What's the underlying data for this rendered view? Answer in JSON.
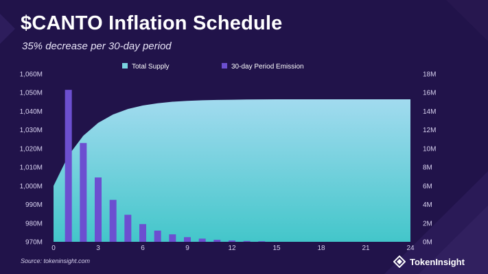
{
  "title": "$CANTO Inflation Schedule",
  "subtitle": "35% decrease per 30-day period",
  "source": "Source: tokeninsight.com",
  "brand": {
    "name": "TokenInsight",
    "logo_icon": "tokeninsight-logo-icon"
  },
  "colors": {
    "background": "#21134a",
    "area_top": "#a2dbef",
    "area_bottom": "#43c6ca",
    "bar": "#6c4fd0",
    "text": "#ffffff",
    "tick": "#d9d3f0"
  },
  "chart_data": {
    "type": "bar",
    "title": "$CANTO Inflation Schedule",
    "subtitle": "35% decrease per 30-day period",
    "legend_position": "top-center",
    "grid": false,
    "x": {
      "range": [
        0,
        24
      ],
      "ticks": [
        0,
        3,
        6,
        9,
        12,
        15,
        18,
        21,
        24
      ],
      "tick_labels": [
        "0",
        "3",
        "6",
        "9",
        "12",
        "15",
        "18",
        "21",
        "24"
      ]
    },
    "y_left": {
      "range": [
        970,
        1060
      ],
      "unit": "M",
      "ticks": [
        970,
        980,
        990,
        1000,
        1010,
        1020,
        1030,
        1040,
        1050,
        1060
      ],
      "tick_labels": [
        "970M",
        "980M",
        "990M",
        "1,000M",
        "1,010M",
        "1,020M",
        "1,030M",
        "1,040M",
        "1,050M",
        "1,060M"
      ]
    },
    "y_right": {
      "range": [
        0,
        18
      ],
      "unit": "M",
      "ticks": [
        0,
        2,
        4,
        6,
        8,
        10,
        12,
        14,
        16,
        18
      ],
      "tick_labels": [
        "0M",
        "2M",
        "4M",
        "6M",
        "8M",
        "10M",
        "12M",
        "14M",
        "16M",
        "18M"
      ]
    },
    "series": [
      {
        "name": "Total Supply",
        "type": "area",
        "axis": "left",
        "x": [
          0,
          1,
          2,
          3,
          4,
          5,
          6,
          7,
          8,
          9,
          10,
          11,
          12,
          13,
          14,
          15,
          16,
          17,
          18,
          19,
          20,
          21,
          22,
          23,
          24
        ],
        "values": [
          1000.0,
          1016.3,
          1026.9,
          1033.8,
          1038.3,
          1041.2,
          1043.1,
          1044.3,
          1045.1,
          1045.6,
          1045.9,
          1046.1,
          1046.2,
          1046.3,
          1046.35,
          1046.4,
          1046.4,
          1046.4,
          1046.4,
          1046.4,
          1046.4,
          1046.4,
          1046.4,
          1046.4,
          1046.4
        ]
      },
      {
        "name": "30-day Period Emission",
        "type": "bar",
        "axis": "right",
        "x": [
          1,
          2,
          3,
          4,
          5,
          6,
          7,
          8,
          9,
          10,
          11,
          12,
          13,
          14
        ],
        "values": [
          16.3,
          10.6,
          6.9,
          4.5,
          2.9,
          1.9,
          1.2,
          0.8,
          0.5,
          0.34,
          0.22,
          0.14,
          0.09,
          0.06
        ]
      }
    ]
  }
}
